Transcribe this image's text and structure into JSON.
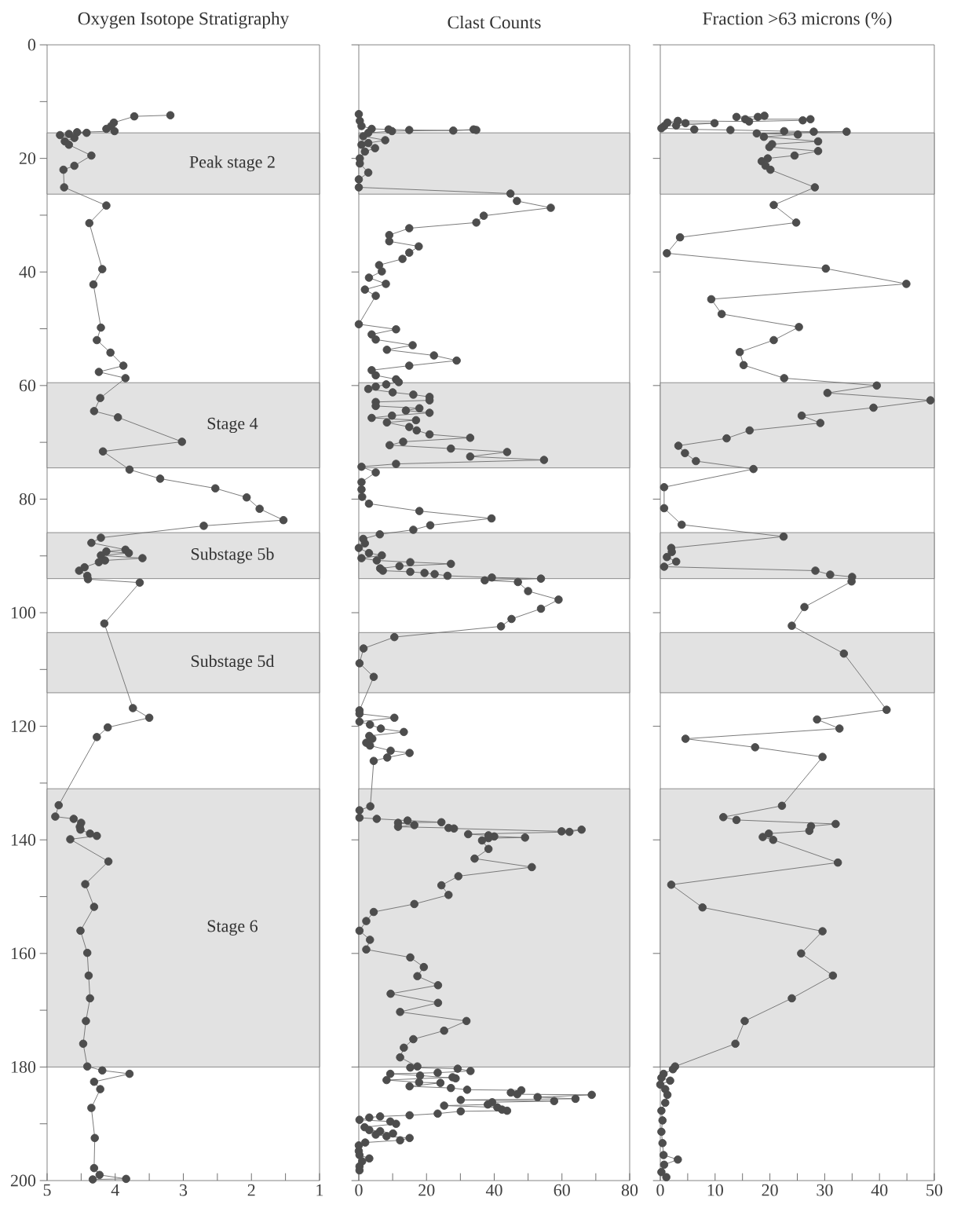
{
  "chart_data": [
    {
      "type": "line",
      "title": "Oxygen Isotope Stratigraphy",
      "color": "#4d4d4d",
      "marker": "circle",
      "x": [
        3.19,
        3.72,
        4.02,
        4.06,
        4.13,
        4.01,
        4.56,
        4.42,
        4.68,
        4.81,
        4.6,
        4.74,
        4.68,
        4.35,
        4.6,
        4.76,
        4.75,
        4.13,
        4.38,
        4.19,
        4.32,
        4.21,
        4.27,
        4.07,
        3.88,
        4.24,
        3.85,
        4.22,
        4.31,
        3.96,
        3.02,
        4.18,
        3.79,
        3.34,
        2.53,
        2.07,
        1.88,
        1.53,
        2.7,
        4.21,
        4.35,
        3.85,
        4.13,
        3.8,
        4.21,
        3.6,
        4.15,
        4.24,
        4.45,
        4.53,
        4.41,
        4.4,
        3.64,
        4.16,
        3.74,
        3.5,
        4.11,
        4.27,
        4.83,
        4.88,
        4.61,
        4.5,
        4.52,
        4.51,
        4.37,
        4.27,
        4.66,
        4.1,
        4.44,
        4.31,
        4.51,
        4.41,
        4.39,
        4.37,
        4.43,
        4.47,
        4.41,
        4.19,
        3.79,
        4.31,
        4.22,
        4.35,
        4.3,
        4.31,
        4.23,
        3.84,
        4.33
      ],
      "values": [
        12.4,
        12.6,
        13.7,
        14.3,
        14.8,
        15.2,
        15.4,
        15.5,
        15.7,
        15.9,
        16.4,
        17.0,
        17.6,
        19.5,
        21.3,
        22.0,
        25.1,
        28.3,
        31.4,
        39.5,
        42.2,
        49.8,
        52.0,
        54.2,
        56.5,
        57.6,
        58.7,
        62.2,
        64.5,
        65.6,
        69.9,
        71.6,
        74.8,
        76.4,
        78.1,
        79.7,
        81.7,
        83.7,
        84.7,
        86.8,
        87.7,
        88.9,
        89.2,
        89.5,
        89.9,
        90.4,
        90.8,
        91.1,
        92.0,
        92.6,
        93.5,
        94.1,
        94.7,
        101.9,
        116.8,
        118.5,
        120.2,
        121.9,
        133.9,
        135.9,
        136.3,
        137.0,
        137.7,
        138.2,
        138.9,
        139.3,
        139.9,
        143.8,
        147.8,
        151.8,
        156.0,
        159.9,
        163.9,
        167.9,
        171.9,
        175.9,
        179.9,
        180.6,
        181.2,
        182.6,
        183.9,
        187.2,
        192.5,
        197.8,
        199.0,
        199.7,
        199.8
      ],
      "xlim": [
        5,
        1
      ],
      "ylim": [
        200,
        0
      ],
      "xticks": [
        5,
        {
          "value": 4.5,
          "label": null
        },
        4,
        {
          "value": 3.5,
          "label": null
        },
        3,
        {
          "value": 2.5,
          "label": null
        },
        2,
        {
          "value": 1.5,
          "label": null
        },
        1
      ],
      "yticks": [
        0,
        {
          "value": 10,
          "label": null
        },
        20,
        {
          "value": 30,
          "label": null
        },
        40,
        {
          "value": 50,
          "label": null
        },
        60,
        {
          "value": 70,
          "label": null
        },
        80,
        {
          "value": 90,
          "label": null
        },
        100,
        {
          "value": 110,
          "label": null
        },
        120,
        {
          "value": 130,
          "label": null
        },
        140,
        {
          "value": 150,
          "label": null
        },
        160,
        {
          "value": 170,
          "label": null
        },
        180,
        {
          "value": 190,
          "label": null
        },
        200
      ],
      "bands": [
        {
          "axis": "y",
          "from": 15.5,
          "to": 26.3,
          "label": "Peak stage 2",
          "color": "#e2e2e2"
        },
        {
          "axis": "y",
          "from": 59.5,
          "to": 74.5,
          "label": "Stage 4",
          "color": "#e2e2e2"
        },
        {
          "axis": "y",
          "from": 85.9,
          "to": 94.0,
          "label": "Substage 5b",
          "color": "#e2e2e2"
        },
        {
          "axis": "y",
          "from": 103.5,
          "to": 114.1,
          "label": "Substage 5d",
          "color": "#e2e2e2"
        },
        {
          "axis": "y",
          "from": 131.0,
          "to": 180.0,
          "label": "Stage 6",
          "color": "#e2e2e2"
        }
      ]
    },
    {
      "type": "line",
      "title": "Clast Counts",
      "color": "#4d4d4d",
      "marker": "circle",
      "tick_labels": "x",
      "x": [
        0,
        0.3,
        0.8,
        3.8,
        8.8,
        14.9,
        27.9,
        33.9,
        34.7,
        9.8,
        2.8,
        1.3,
        7.8,
        2.8,
        0.8,
        4.8,
        1.8,
        0.3,
        0.3,
        2.8,
        0,
        0,
        44.8,
        46.7,
        56.7,
        36.9,
        34.7,
        14.9,
        9.0,
        9.0,
        17.7,
        14.9,
        12.9,
        6.0,
        6.8,
        3.0,
        8.0,
        1.8,
        5.0,
        0,
        11.0,
        3.8,
        5.0,
        15.9,
        8.3,
        22.2,
        28.9,
        14.9,
        3.8,
        5.0,
        11.0,
        11.8,
        8.1,
        5.0,
        2.8,
        10.0,
        16.1,
        20.9,
        20.9,
        5.0,
        5.0,
        17.9,
        13.9,
        20.9,
        9.8,
        3.8,
        16.9,
        8.3,
        14.9,
        17.1,
        20.9,
        32.9,
        13.1,
        9.1,
        27.2,
        43.8,
        32.9,
        54.7,
        11.0,
        0.8,
        5.0,
        0.8,
        0.8,
        1.0,
        3.0,
        17.9,
        39.2,
        21.1,
        16.1,
        6.2,
        1.3,
        1.8,
        0,
        3.0,
        6.8,
        0.8,
        5.3,
        15.2,
        27.2,
        12.0,
        6.3,
        7.1,
        15.2,
        19.4,
        22.4,
        26.2,
        39.3,
        53.8,
        37.2,
        47.0,
        50.0,
        59.0,
        53.8,
        45.1,
        42.0,
        10.5,
        1.4,
        0.2,
        4.4,
        0.2,
        0.2,
        10.5,
        0.2,
        3.3,
        6.5,
        13.3,
        3.1,
        4.0,
        2.2,
        3.3,
        9.4,
        15.0,
        8.4,
        4.4,
        3.4,
        0.2,
        0.2,
        5.3,
        14.4,
        24.4,
        11.6,
        16.4,
        11.6,
        26.5,
        28.1,
        59.9,
        65.8,
        62.2,
        32.3,
        38.3,
        40.0,
        49.1,
        38.3,
        36.4,
        38.3,
        34.2,
        51.1,
        29.4,
        24.4,
        26.5,
        16.4,
        4.4,
        2.2,
        0.2,
        3.3,
        2.2,
        15.2,
        19.2,
        17.3,
        23.4,
        9.4,
        23.4,
        12.2,
        31.8,
        25.2,
        16.1,
        13.3,
        12.2,
        17.3,
        15.2,
        29.2,
        33.0,
        23.3,
        9.3,
        18.1,
        28.6,
        27.7,
        8.2,
        17.8,
        24.1,
        15.0,
        27.2,
        32.0,
        48.0,
        44.9,
        46.8,
        68.8,
        52.8,
        64.0,
        30.1,
        57.7,
        39.4,
        38.1,
        25.2,
        40.9,
        42.3,
        43.8,
        30.1,
        23.3,
        15.0,
        6.3,
        3.1,
        0.2,
        9.3,
        11.0,
        1.7,
        3.1,
        6.3,
        10.1,
        5.0,
        8.2,
        15.0,
        12.2,
        1.9,
        0,
        0,
        0.2,
        3.1,
        1.0,
        0.2,
        0.2
      ],
      "values": [
        12.2,
        13.4,
        14.3,
        14.8,
        14.9,
        15.0,
        15.1,
        14.9,
        15.0,
        15.2,
        15.5,
        16.1,
        16.8,
        17.3,
        17.6,
        18.2,
        18.8,
        20.0,
        20.9,
        22.5,
        23.7,
        25.1,
        26.2,
        27.5,
        28.7,
        30.1,
        31.3,
        32.3,
        33.5,
        34.6,
        35.5,
        36.6,
        37.7,
        38.8,
        39.9,
        41.0,
        42.1,
        43.1,
        44.2,
        49.2,
        50.1,
        51.0,
        51.9,
        52.9,
        53.7,
        54.7,
        55.6,
        56.5,
        57.3,
        58.2,
        58.9,
        59.4,
        59.8,
        60.2,
        60.6,
        61.2,
        61.6,
        62.0,
        62.6,
        62.9,
        63.6,
        64.0,
        64.4,
        64.8,
        65.3,
        65.7,
        66.1,
        66.5,
        67.3,
        67.9,
        68.6,
        69.2,
        69.9,
        70.5,
        71.1,
        71.7,
        72.5,
        73.1,
        73.8,
        74.3,
        75.3,
        77.0,
        78.3,
        79.6,
        80.8,
        82.1,
        83.4,
        84.6,
        85.4,
        86.2,
        87.0,
        87.8,
        88.6,
        89.5,
        89.9,
        90.4,
        90.8,
        91.1,
        91.4,
        91.8,
        92.2,
        92.6,
        92.8,
        93.0,
        93.2,
        93.5,
        93.8,
        94.0,
        94.3,
        94.6,
        96.2,
        97.7,
        99.3,
        101.1,
        102.4,
        104.3,
        106.3,
        108.9,
        111.3,
        117.2,
        117.8,
        118.5,
        119.2,
        119.7,
        120.4,
        121.0,
        121.7,
        122.2,
        122.9,
        123.4,
        124.3,
        124.7,
        125.5,
        126.1,
        134.1,
        134.8,
        136.1,
        136.3,
        136.6,
        136.9,
        137.0,
        137.4,
        137.7,
        137.9,
        138.0,
        138.5,
        138.2,
        138.6,
        139.0,
        139.2,
        139.4,
        139.6,
        139.7,
        140.1,
        141.6,
        143.3,
        144.8,
        146.4,
        148.0,
        149.7,
        151.3,
        152.7,
        154.3,
        156.0,
        157.6,
        159.3,
        160.7,
        162.4,
        164.0,
        165.6,
        167.1,
        168.7,
        170.3,
        171.9,
        173.6,
        175.1,
        176.6,
        178.3,
        179.9,
        180.1,
        180.3,
        180.7,
        181.0,
        181.2,
        181.5,
        182.0,
        181.8,
        182.3,
        182.7,
        182.8,
        183.4,
        183.7,
        184.0,
        184.1,
        184.5,
        184.8,
        184.9,
        185.3,
        185.6,
        185.8,
        186.0,
        186.2,
        186.6,
        186.8,
        187.1,
        187.5,
        187.7,
        187.8,
        188.2,
        188.5,
        188.7,
        188.9,
        189.3,
        189.6,
        190.0,
        190.6,
        191.1,
        191.3,
        191.7,
        191.9,
        192.2,
        192.5,
        192.9,
        193.3,
        193.8,
        194.8,
        195.5,
        196.1,
        196.6,
        197.5,
        198.2
      ],
      "xlim": [
        0,
        80
      ],
      "ylim": [
        200,
        0
      ],
      "xticks": [
        0,
        {
          "value": 10,
          "label": null
        },
        20,
        {
          "value": 30,
          "label": null
        },
        40,
        {
          "value": 50,
          "label": null
        },
        60,
        {
          "value": 70,
          "label": null
        },
        80
      ],
      "yticks": [
        {
          "value": 0,
          "label": null
        },
        {
          "value": 20,
          "label": null
        },
        {
          "value": 40,
          "label": null
        },
        {
          "value": 60,
          "label": null
        },
        {
          "value": 80,
          "label": null
        },
        {
          "value": 100,
          "label": null
        },
        {
          "value": 120,
          "label": null
        },
        {
          "value": 140,
          "label": null
        },
        {
          "value": 160,
          "label": null
        },
        {
          "value": 180,
          "label": null
        },
        {
          "value": 200,
          "label": null
        }
      ],
      "bands": [
        {
          "axis": "y",
          "from": 15.5,
          "to": 26.3,
          "color": "#e2e2e2"
        },
        {
          "axis": "y",
          "from": 59.5,
          "to": 74.5,
          "color": "#e2e2e2"
        },
        {
          "axis": "y",
          "from": 85.9,
          "to": 94.0,
          "color": "#e2e2e2"
        },
        {
          "axis": "y",
          "from": 103.5,
          "to": 114.1,
          "color": "#e2e2e2"
        },
        {
          "axis": "y",
          "from": 131.0,
          "to": 180.0,
          "color": "#e2e2e2"
        }
      ]
    },
    {
      "type": "line",
      "title": "Fraction >63 microns (%)",
      "color": "#4d4d4d",
      "marker": "circle",
      "tick_labels": "x",
      "x": [
        19.0,
        17.8,
        13.9,
        15.5,
        27.4,
        26.0,
        16.2,
        3.2,
        1.3,
        4.6,
        9.9,
        2.9,
        0.7,
        0.2,
        6.2,
        12.8,
        22.6,
        28.0,
        34.0,
        17.6,
        25.1,
        18.9,
        28.8,
        20.4,
        19.9,
        28.8,
        24.5,
        19.6,
        18.5,
        19.2,
        20.1,
        28.2,
        20.7,
        24.8,
        3.6,
        1.2,
        30.2,
        44.9,
        9.3,
        11.2,
        25.3,
        20.7,
        14.5,
        15.2,
        22.6,
        39.5,
        30.5,
        49.3,
        38.9,
        25.8,
        29.2,
        16.3,
        12.1,
        3.3,
        4.5,
        6.5,
        17.0,
        0.7,
        0.7,
        3.9,
        22.5,
        2.0,
        2.1,
        1.2,
        2.9,
        0.7,
        28.3,
        31.0,
        35.0,
        34.9,
        26.3,
        24.0,
        33.5,
        41.3,
        28.6,
        32.7,
        4.6,
        17.3,
        29.6,
        22.2,
        11.5,
        13.9,
        32.0,
        27.5,
        27.2,
        19.8,
        18.7,
        20.6,
        32.4,
        2.0,
        7.7,
        29.6,
        25.7,
        31.5,
        24.0,
        15.4,
        13.7,
        2.7,
        2.3,
        0.6,
        0.2,
        1.8,
        0,
        0.9,
        1.3,
        0.9,
        0.2,
        0.4,
        0.2,
        0.4,
        0.6,
        3.2,
        0.7,
        0.2,
        1.1
      ],
      "values": [
        12.5,
        12.7,
        12.7,
        13.1,
        13.1,
        13.3,
        13.5,
        13.4,
        13.7,
        13.8,
        13.8,
        14.2,
        14.3,
        14.7,
        14.9,
        15.0,
        15.2,
        15.3,
        15.3,
        15.6,
        15.8,
        16.2,
        17.0,
        17.5,
        18.0,
        18.7,
        19.5,
        20.0,
        20.5,
        21.3,
        22.0,
        25.1,
        28.2,
        31.3,
        33.9,
        36.7,
        39.4,
        42.1,
        44.8,
        47.4,
        49.7,
        52.0,
        54.1,
        56.4,
        58.7,
        60.0,
        61.3,
        62.6,
        63.9,
        65.3,
        66.6,
        67.9,
        69.3,
        70.6,
        71.9,
        73.3,
        74.7,
        77.9,
        81.6,
        84.5,
        86.6,
        88.6,
        89.3,
        90.2,
        91.0,
        91.9,
        92.6,
        93.3,
        93.7,
        94.5,
        99.0,
        102.3,
        107.2,
        117.1,
        118.8,
        120.4,
        122.2,
        123.7,
        125.4,
        134.0,
        136.0,
        136.5,
        137.2,
        137.6,
        138.4,
        138.9,
        139.5,
        140.0,
        144.0,
        147.9,
        151.9,
        156.1,
        160.0,
        163.9,
        167.9,
        171.9,
        175.9,
        179.9,
        180.4,
        181.2,
        181.9,
        182.4,
        183.1,
        183.9,
        184.9,
        186.3,
        187.7,
        189.4,
        191.4,
        193.4,
        195.5,
        196.3,
        197.2,
        198.5,
        199.4
      ],
      "xlim": [
        0,
        50
      ],
      "ylim": [
        200,
        0
      ],
      "xticks": [
        0,
        {
          "value": 5,
          "label": null
        },
        10,
        {
          "value": 15,
          "label": null
        },
        20,
        {
          "value": 25,
          "label": null
        },
        30,
        {
          "value": 35,
          "label": null
        },
        40,
        {
          "value": 45,
          "label": null
        },
        50
      ],
      "yticks": [
        {
          "value": 0,
          "label": null
        },
        {
          "value": 20,
          "label": null
        },
        {
          "value": 40,
          "label": null
        },
        {
          "value": 60,
          "label": null
        },
        {
          "value": 80,
          "label": null
        },
        {
          "value": 100,
          "label": null
        },
        {
          "value": 120,
          "label": null
        },
        {
          "value": 140,
          "label": null
        },
        {
          "value": 160,
          "label": null
        },
        {
          "value": 180,
          "label": null
        },
        {
          "value": 200,
          "label": null
        }
      ],
      "bands": [
        {
          "axis": "y",
          "from": 15.5,
          "to": 26.3,
          "color": "#e2e2e2"
        },
        {
          "axis": "y",
          "from": 59.5,
          "to": 74.5,
          "color": "#e2e2e2"
        },
        {
          "axis": "y",
          "from": 85.9,
          "to": 94.0,
          "color": "#e2e2e2"
        },
        {
          "axis": "y",
          "from": 103.5,
          "to": 114.1,
          "color": "#e2e2e2"
        },
        {
          "axis": "y",
          "from": 131.0,
          "to": 180.0,
          "color": "#e2e2e2"
        }
      ]
    }
  ]
}
